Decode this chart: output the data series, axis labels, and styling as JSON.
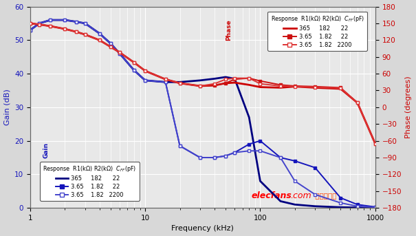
{
  "freq": [
    1,
    1.2,
    1.5,
    2,
    2.5,
    3,
    4,
    5,
    6,
    8,
    10,
    15,
    20,
    30,
    40,
    50,
    60,
    80,
    100,
    150,
    200,
    300,
    500,
    700,
    1000
  ],
  "gain1": [
    53,
    55,
    56,
    56,
    55.5,
    55,
    52,
    49,
    46,
    41,
    38,
    37.5,
    37.5,
    38,
    38.5,
    39,
    38.5,
    27,
    8,
    2,
    1,
    0.5,
    0.2,
    0.1,
    0.05
  ],
  "gain2": [
    53,
    55,
    56,
    56,
    55.5,
    55,
    52,
    49,
    46,
    41,
    38,
    37.5,
    18.5,
    15,
    15,
    15.5,
    16.5,
    19,
    20,
    15,
    14,
    12,
    3,
    1,
    0.3
  ],
  "gain3": [
    53,
    55,
    56,
    56,
    55.5,
    55,
    52,
    49,
    46,
    41,
    38,
    37.5,
    18.5,
    15,
    15,
    15.5,
    16.5,
    17,
    17,
    15,
    8,
    4,
    1.5,
    0.5,
    0.2
  ],
  "phase1": [
    150,
    148,
    145,
    140,
    135,
    130,
    120,
    108,
    98,
    80,
    65,
    50,
    43,
    38,
    39,
    43,
    44,
    40,
    36,
    35,
    37,
    35,
    33,
    8,
    -65
  ],
  "phase2": [
    150,
    148,
    145,
    140,
    135,
    130,
    120,
    108,
    98,
    80,
    65,
    50,
    43,
    38,
    39,
    43,
    50,
    52,
    47,
    40,
    38,
    37,
    35,
    8,
    -65
  ],
  "phase3": [
    150,
    148,
    145,
    140,
    135,
    130,
    120,
    108,
    98,
    80,
    65,
    50,
    43,
    38,
    42,
    50,
    52,
    52,
    42,
    38,
    37,
    36,
    34,
    8,
    -65
  ],
  "colors_gain": [
    "#000080",
    "#1515bb",
    "#4444cc"
  ],
  "colors_phase": [
    "#cc0000",
    "#cc1111",
    "#dd3333"
  ],
  "bg_color": "#d8d8d8",
  "grid_color": "#ffffff",
  "plot_bg": "#e8e8e8",
  "xlim": [
    1,
    1000
  ],
  "ylim_gain": [
    0,
    60
  ],
  "ylim_phase": [
    -180,
    180
  ],
  "yticks_gain": [
    0,
    10,
    20,
    30,
    40,
    50,
    60
  ],
  "yticks_phase": [
    -180,
    -150,
    -120,
    -90,
    -60,
    -30,
    0,
    30,
    60,
    90,
    120,
    150,
    180
  ],
  "xlabel": "Frequency (kHz)",
  "ylabel_gain": "Gain (dB)",
  "ylabel_phase": "Phase (degrees)"
}
